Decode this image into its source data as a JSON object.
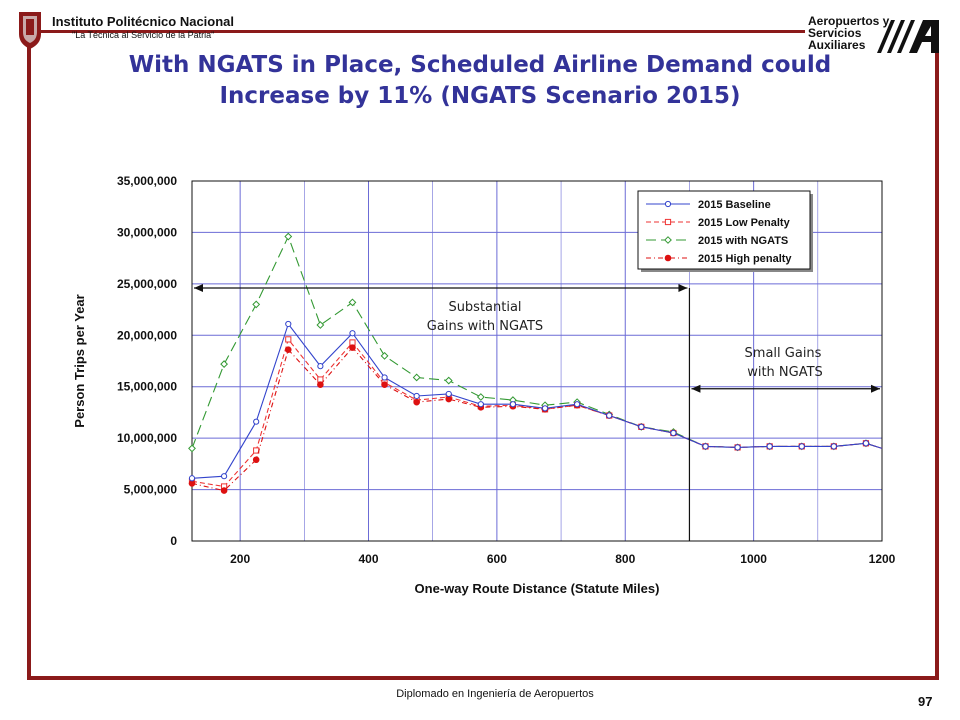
{
  "header": {
    "institution": "Instituto Politécnico Nacional",
    "motto": "\"La Técnica al Servicio de la Patria\"",
    "right_logo_lines": [
      "Aeropuertos y",
      "Servicios",
      "Auxiliares"
    ]
  },
  "title_lines": [
    "With NGATS in Place, Scheduled Airline Demand could",
    "Increase by 11% (NGATS Scenario 2015)"
  ],
  "annotations": {
    "substantial": [
      "Substantial",
      "Gains with NGATS"
    ],
    "small": [
      "Small Gains",
      "with NGATS"
    ]
  },
  "footer": {
    "text": "Diplomado en Ingeniería de Aeropuertos",
    "page": "97"
  },
  "colors": {
    "frame": "#8b1a1a",
    "title": "#333399",
    "grid": "#6b6bd6"
  },
  "chart_data": {
    "type": "line",
    "xlabel": "One-way Route  Distance (Statute Miles)",
    "ylabel": "Person Trips per Year",
    "xlim": [
      125,
      1200
    ],
    "ylim": [
      0,
      35000000
    ],
    "x_ticks": [
      200,
      400,
      600,
      800,
      1000,
      1200
    ],
    "y_ticks": [
      0,
      5000000,
      10000000,
      15000000,
      20000000,
      25000000,
      30000000,
      35000000
    ],
    "y_tick_labels": [
      "0",
      "5,000,000",
      "10,000,000",
      "15,000,000",
      "20,000,000",
      "25,000,000",
      "30,000,000",
      "35,000,000"
    ],
    "x_tick_labels": [
      "200",
      "400",
      "600",
      "800",
      "1000",
      "1200"
    ],
    "grid": true,
    "legend_position": "top-right",
    "x": [
      125,
      175,
      225,
      275,
      325,
      375,
      425,
      475,
      525,
      575,
      625,
      675,
      725,
      775,
      825,
      875,
      925,
      975,
      1025,
      1075,
      1125,
      1175,
      1200
    ],
    "series": [
      {
        "name": "2015 Baseline",
        "color": "#3344cc",
        "dash": "",
        "marker": "circle-open",
        "values": [
          6100000,
          6300000,
          11600000,
          21100000,
          17000000,
          20200000,
          15900000,
          14100000,
          14300000,
          13300000,
          13300000,
          12900000,
          13300000,
          12200000,
          11100000,
          10500000,
          9200000,
          9100000,
          9200000,
          9200000,
          9200000,
          9500000,
          9000000
        ]
      },
      {
        "name": "2015 Low Penalty",
        "color": "#ee3333",
        "dash": "5,3",
        "marker": "square-open",
        "values": [
          5800000,
          5300000,
          8800000,
          19600000,
          15700000,
          19300000,
          15400000,
          13700000,
          14000000,
          13100000,
          13200000,
          12800000,
          13200000,
          12200000,
          11100000,
          10500000,
          9200000,
          9100000,
          9200000,
          9200000,
          9200000,
          9500000,
          9000000
        ]
      },
      {
        "name": "2015 with NGATS",
        "color": "#339933",
        "dash": "10,5",
        "marker": "diamond-open",
        "values": [
          9000000,
          17200000,
          23000000,
          29600000,
          21000000,
          23200000,
          18000000,
          15900000,
          15600000,
          14000000,
          13700000,
          13200000,
          13500000,
          12300000,
          11100000,
          10600000,
          9200000,
          9100000,
          9200000,
          9200000,
          9200000,
          9500000,
          9000000
        ]
      },
      {
        "name": "2015 High penalty",
        "color": "#dd1111",
        "dash": "5,3,1,3",
        "marker": "circle-filled",
        "values": [
          5600000,
          4900000,
          7900000,
          18600000,
          15200000,
          18800000,
          15200000,
          13500000,
          13800000,
          13000000,
          13100000,
          12800000,
          13200000,
          12200000,
          11100000,
          10500000,
          9200000,
          9100000,
          9200000,
          9200000,
          9200000,
          9500000,
          9000000
        ]
      }
    ],
    "annotation_arrows": [
      {
        "label": "Substantial Gains with NGATS",
        "x_from": 125,
        "x_to": 900,
        "y": 24600000
      },
      {
        "label": "Small Gains with NGATS",
        "x_from": 900,
        "x_to": 1200,
        "y": 14800000
      }
    ],
    "divider_x": 900
  }
}
